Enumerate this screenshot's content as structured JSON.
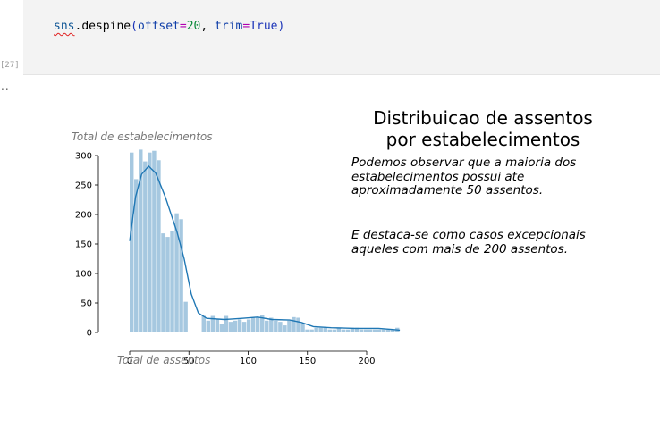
{
  "code": {
    "tokens": [
      "sns",
      ".",
      "despine",
      "(",
      "offset",
      "=",
      "20",
      ", ",
      "trim",
      "=",
      "True",
      ")"
    ],
    "prompt": "[27]"
  },
  "output": {
    "ellipsis": "..",
    "title_line1": "Distribuicao de assentos",
    "title_line2": "por estabelecimentos",
    "note1": "Podemos observar que a maioria dos estabelecimentos possui ate aproximadamente 50 assentos.",
    "note2": "E destaca-se como casos excepcionais aqueles com mais de 200 assentos."
  },
  "chart_data": {
    "type": "bar",
    "ylabel": "Total de estabelecimentos",
    "xlabel": "Total de assentos",
    "xlim": [
      0,
      230
    ],
    "ylim": [
      0,
      310
    ],
    "xticks": [
      0,
      50,
      100,
      150,
      200
    ],
    "yticks": [
      0,
      50,
      100,
      150,
      200,
      250,
      300
    ],
    "bin_width": 3.8,
    "bin_start": 0,
    "values": [
      305,
      260,
      310,
      290,
      305,
      308,
      292,
      168,
      162,
      172,
      202,
      192,
      52,
      0,
      0,
      0,
      28,
      20,
      28,
      22,
      15,
      28,
      18,
      20,
      22,
      18,
      22,
      25,
      25,
      30,
      20,
      25,
      20,
      18,
      12,
      20,
      26,
      25,
      15,
      5,
      5,
      8,
      8,
      8,
      5,
      5,
      8,
      5,
      5,
      8,
      8,
      5,
      5,
      5,
      5,
      5,
      5,
      5,
      5,
      8
    ],
    "kde": [
      [
        0,
        155
      ],
      [
        5,
        230
      ],
      [
        10,
        268
      ],
      [
        16,
        282
      ],
      [
        22,
        270
      ],
      [
        30,
        230
      ],
      [
        40,
        170
      ],
      [
        46,
        125
      ],
      [
        52,
        65
      ],
      [
        58,
        33
      ],
      [
        65,
        24
      ],
      [
        80,
        22
      ],
      [
        95,
        24
      ],
      [
        108,
        26
      ],
      [
        120,
        22
      ],
      [
        135,
        21
      ],
      [
        145,
        17
      ],
      [
        155,
        10
      ],
      [
        170,
        8
      ],
      [
        190,
        7
      ],
      [
        210,
        7
      ],
      [
        222,
        5
      ],
      [
        228,
        4
      ]
    ],
    "bar_color": "#a6c8e0",
    "line_color": "#1f77b4"
  }
}
